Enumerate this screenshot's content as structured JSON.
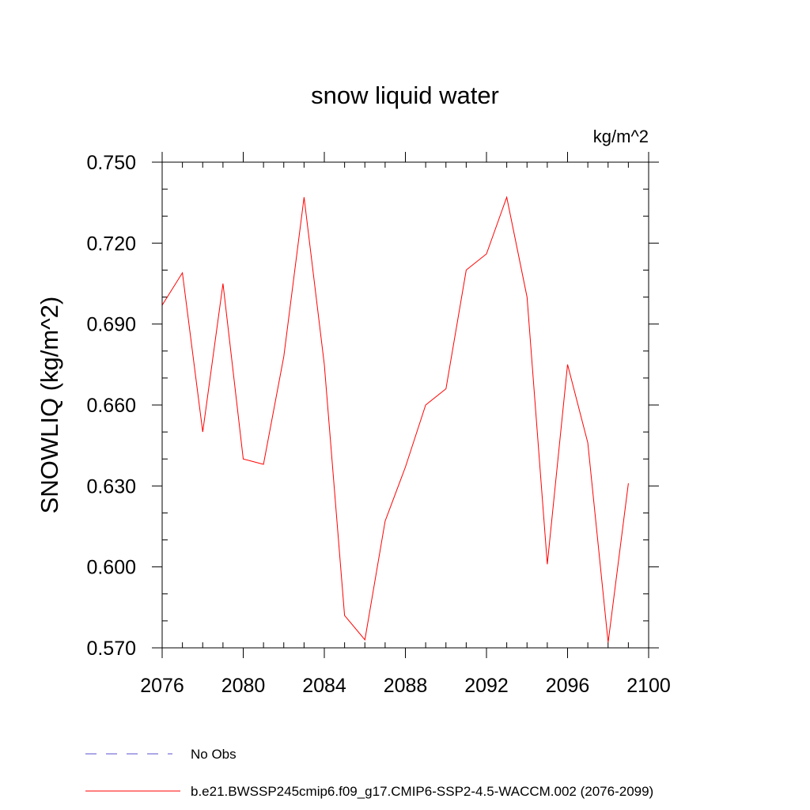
{
  "chart_data": {
    "type": "line",
    "title": "snow liquid water",
    "units_label": "kg/m^2",
    "ylabel": "SNOWLIQ  (kg/m^2)",
    "xlabel": "",
    "xlim": [
      2076,
      2100
    ],
    "ylim": [
      0.57,
      0.75
    ],
    "x_ticks": [
      2076,
      2080,
      2084,
      2088,
      2092,
      2096,
      2100
    ],
    "x_tick_labels": [
      "2076",
      "2080",
      "2084",
      "2088",
      "2092",
      "2096",
      "2100"
    ],
    "y_ticks": [
      0.57,
      0.6,
      0.63,
      0.66,
      0.69,
      0.72,
      0.75
    ],
    "y_tick_labels": [
      "0.570",
      "0.600",
      "0.630",
      "0.660",
      "0.690",
      "0.720",
      "0.750"
    ],
    "grid": false,
    "legend_position": "bottom",
    "series": [
      {
        "name": "b.e21.BWSSP245cmip6.f09_g17.CMIP6-SSP2-4.5-WACCM.002 (2076-2099)",
        "color": "#ff0000",
        "dash": "solid",
        "x": [
          2076,
          2077,
          2078,
          2079,
          2080,
          2081,
          2082,
          2083,
          2084,
          2085,
          2086,
          2087,
          2088,
          2089,
          2090,
          2091,
          2092,
          2093,
          2094,
          2095,
          2096,
          2097,
          2098,
          2099
        ],
        "values": [
          0.697,
          0.709,
          0.65,
          0.705,
          0.64,
          0.638,
          0.678,
          0.737,
          0.675,
          0.582,
          0.573,
          0.617,
          0.637,
          0.66,
          0.666,
          0.71,
          0.716,
          0.737,
          0.7,
          0.601,
          0.675,
          0.646,
          0.572,
          0.631
        ]
      },
      {
        "name": "No Obs",
        "color": "#5a4fcf",
        "dash": "dashed",
        "x": [],
        "values": []
      }
    ]
  }
}
